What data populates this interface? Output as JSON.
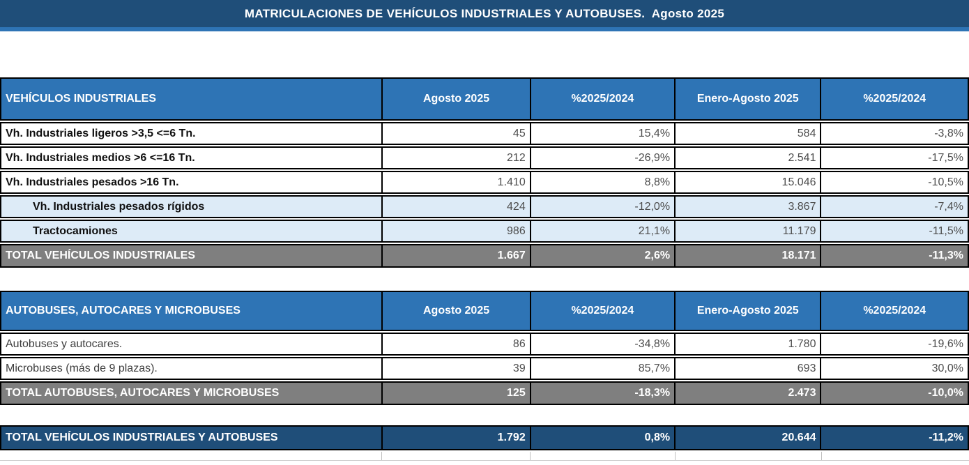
{
  "title": "MATRICULACIONES DE VEHÍCULOS INDUSTRIALES Y AUTOBUSES.  Agosto 2025",
  "colors": {
    "title_bar": "#1F4E79",
    "title_bar_strip": "#2E74B5",
    "header_blue": "#2E74B5",
    "subrow_blue": "#DDEBF7",
    "total_gray": "#7F7F7F",
    "grand_navy": "#1F4E79"
  },
  "tables": [
    {
      "title": "VEHÍCULOS INDUSTRIALES",
      "columns": [
        "Agosto 2025",
        "%2025/2024",
        "Enero-Agosto 2025",
        "%2025/2024"
      ],
      "rows": [
        {
          "label": "Vh. Industriales ligeros >3,5 <=6 Tn.",
          "values": [
            "45",
            "15,4%",
            "584",
            "-3,8%"
          ]
        },
        {
          "label": "Vh. Industriales medios >6  <=16 Tn.",
          "values": [
            "212",
            "-26,9%",
            "2.541",
            "-17,5%"
          ]
        },
        {
          "label": "Vh. Industriales  pesados >16 Tn.",
          "values": [
            "1.410",
            "8,8%",
            "15.046",
            "-10,5%"
          ]
        },
        {
          "label": "Vh. Industriales pesados rígidos",
          "values": [
            "424",
            "-12,0%",
            "3.867",
            "-7,4%"
          ]
        },
        {
          "label": "Tractocamiones",
          "values": [
            "986",
            "21,1%",
            "11.179",
            "-11,5%"
          ]
        }
      ],
      "total": {
        "label": "TOTAL VEHÍCULOS INDUSTRIALES",
        "values": [
          "1.667",
          "2,6%",
          "18.171",
          "-11,3%"
        ]
      }
    },
    {
      "title": "AUTOBUSES, AUTOCARES Y MICROBUSES",
      "columns": [
        "Agosto 2025",
        "%2025/2024",
        "Enero-Agosto 2025",
        "%2025/2024"
      ],
      "rows": [
        {
          "label": "Autobuses y autocares.",
          "values": [
            "86",
            "-34,8%",
            "1.780",
            "-19,6%"
          ]
        },
        {
          "label": "Microbuses (más de 9 plazas).",
          "values": [
            "39",
            "85,7%",
            "693",
            "30,0%"
          ]
        }
      ],
      "total": {
        "label": "TOTAL AUTOBUSES, AUTOCARES Y MICROBUSES",
        "values": [
          "125",
          "-18,3%",
          "2.473",
          "-10,0%"
        ]
      }
    }
  ],
  "grand_total": {
    "label": "TOTAL VEHÍCULOS INDUSTRIALES Y AUTOBUSES",
    "values": [
      "1.792",
      "0,8%",
      "20.644",
      "-11,2%"
    ]
  }
}
